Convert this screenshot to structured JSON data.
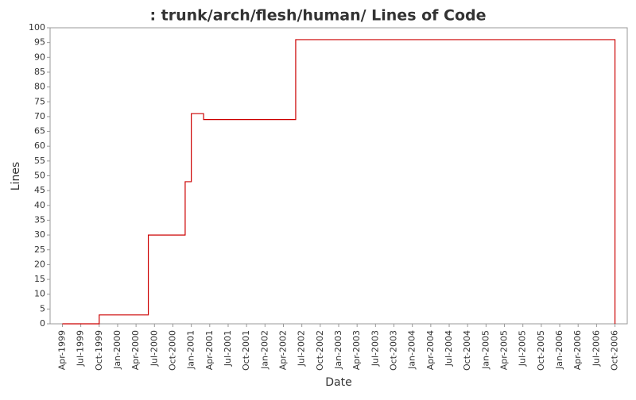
{
  "chart_data": {
    "type": "step-line",
    "title": ": trunk/arch/flesh/human/ Lines of Code",
    "x_label": "Date",
    "y_label": "Lines",
    "x": [
      "1999-04",
      "1999-10",
      "2000-06",
      "2000-12",
      "2001-01",
      "2001-03",
      "2002-06",
      "2006-10"
    ],
    "series": [
      {
        "name": "Lines",
        "color": "#cc0000",
        "values": [
          0,
          3,
          30,
          48,
          71,
          69,
          96,
          0
        ]
      }
    ],
    "xlim": [
      "1999-02",
      "2006-12"
    ],
    "xticks": [
      {
        "value": "1999-04",
        "label": "Apr-1999"
      },
      {
        "value": "1999-07",
        "label": "Jul-1999"
      },
      {
        "value": "1999-10",
        "label": "Oct-1999"
      },
      {
        "value": "2000-01",
        "label": "Jan-2000"
      },
      {
        "value": "2000-04",
        "label": "Apr-2000"
      },
      {
        "value": "2000-07",
        "label": "Jul-2000"
      },
      {
        "value": "2000-10",
        "label": "Oct-2000"
      },
      {
        "value": "2001-01",
        "label": "Jan-2001"
      },
      {
        "value": "2001-04",
        "label": "Apr-2001"
      },
      {
        "value": "2001-07",
        "label": "Jul-2001"
      },
      {
        "value": "2001-10",
        "label": "Oct-2001"
      },
      {
        "value": "2002-01",
        "label": "Jan-2002"
      },
      {
        "value": "2002-04",
        "label": "Apr-2002"
      },
      {
        "value": "2002-07",
        "label": "Jul-2002"
      },
      {
        "value": "2002-10",
        "label": "Oct-2002"
      },
      {
        "value": "2003-01",
        "label": "Jan-2003"
      },
      {
        "value": "2003-04",
        "label": "Apr-2003"
      },
      {
        "value": "2003-07",
        "label": "Jul-2003"
      },
      {
        "value": "2003-10",
        "label": "Oct-2003"
      },
      {
        "value": "2004-01",
        "label": "Jan-2004"
      },
      {
        "value": "2004-04",
        "label": "Apr-2004"
      },
      {
        "value": "2004-07",
        "label": "Jul-2004"
      },
      {
        "value": "2004-10",
        "label": "Oct-2004"
      },
      {
        "value": "2005-01",
        "label": "Jan-2005"
      },
      {
        "value": "2005-04",
        "label": "Apr-2005"
      },
      {
        "value": "2005-07",
        "label": "Jul-2005"
      },
      {
        "value": "2005-10",
        "label": "Oct-2005"
      },
      {
        "value": "2006-01",
        "label": "Jan-2006"
      },
      {
        "value": "2006-04",
        "label": "Apr-2006"
      },
      {
        "value": "2006-07",
        "label": "Jul-2006"
      },
      {
        "value": "2006-10",
        "label": "Oct-2006"
      }
    ],
    "ylim": [
      0,
      100
    ],
    "yticks": [
      0,
      5,
      10,
      15,
      20,
      25,
      30,
      35,
      40,
      45,
      50,
      55,
      60,
      65,
      70,
      75,
      80,
      85,
      90,
      95,
      100
    ],
    "grid": false
  }
}
